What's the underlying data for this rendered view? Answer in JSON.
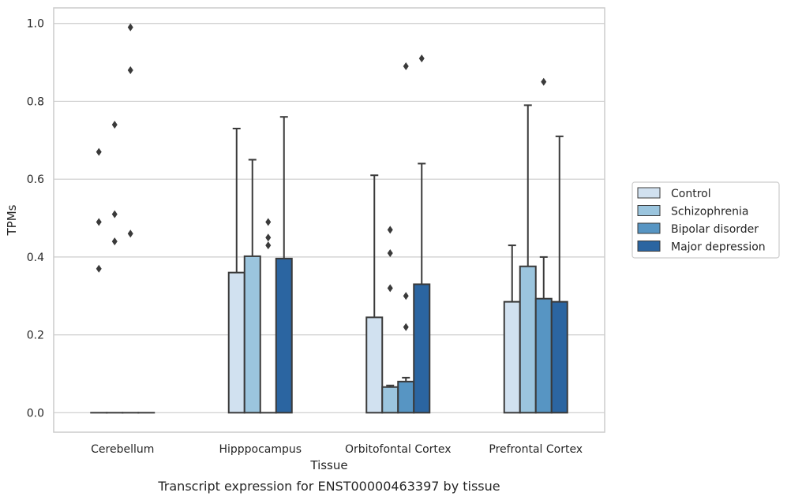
{
  "chart_data": {
    "type": "bar",
    "caption": "Transcript expression for ENST00000463397 by tissue",
    "xlabel": "Tissue",
    "ylabel": "TPMs",
    "ylim": [
      -0.05,
      1.04
    ],
    "yticks": [
      0.0,
      0.2,
      0.4,
      0.6,
      0.8,
      1.0
    ],
    "ytick_labels": [
      "0.0",
      "0.2",
      "0.4",
      "0.6",
      "0.8",
      "1.0"
    ],
    "grid": true,
    "legend_position": "right",
    "categories": [
      "Cerebellum",
      "Hipppocampus",
      "Orbitofontal Cortex",
      "Prefrontal Cortex"
    ],
    "series": [
      {
        "name": "Control",
        "color": "#d1e1f0",
        "values": [
          0.0,
          0.36,
          0.245,
          0.285
        ],
        "err_upper": [
          0.0,
          0.73,
          0.61,
          0.43
        ],
        "outliers": [
          [
            0.37,
            0.49,
            0.67
          ],
          [],
          [],
          []
        ]
      },
      {
        "name": "Schizophrenia",
        "color": "#9bc5de",
        "values": [
          0.0,
          0.402,
          0.066,
          0.376
        ],
        "err_upper": [
          0.0,
          0.65,
          0.07,
          0.79
        ],
        "outliers": [
          [
            0.44,
            0.51,
            0.74
          ],
          [],
          [
            0.32,
            0.41,
            0.47
          ],
          []
        ]
      },
      {
        "name": "Bipolar disorder",
        "color": "#5795c3",
        "values": [
          0.0,
          0.0,
          0.08,
          0.293
        ],
        "err_upper": [
          0.0,
          0.0,
          0.09,
          0.4
        ],
        "outliers": [
          [
            0.46,
            0.88,
            0.99
          ],
          [
            0.43,
            0.45,
            0.49
          ],
          [
            0.22,
            0.3,
            0.89
          ],
          [
            0.85
          ]
        ]
      },
      {
        "name": "Major depression",
        "color": "#2b65a1",
        "values": [
          0.0,
          0.396,
          0.33,
          0.285
        ],
        "err_upper": [
          0.0,
          0.76,
          0.64,
          0.71
        ],
        "outliers": [
          [],
          [],
          [
            0.91
          ],
          []
        ]
      }
    ]
  }
}
